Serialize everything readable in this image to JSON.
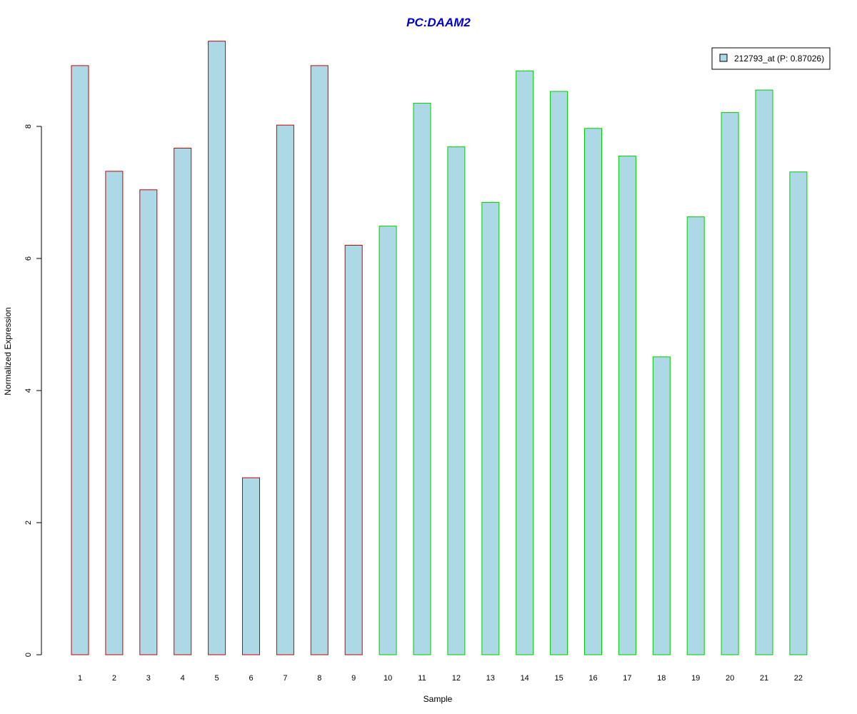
{
  "chart_data": {
    "type": "bar",
    "title": "PC:DAAM2",
    "xlabel": "Sample",
    "ylabel": "Normalized Expression",
    "categories": [
      "1",
      "2",
      "3",
      "4",
      "5",
      "6",
      "7",
      "8",
      "9",
      "10",
      "11",
      "12",
      "13",
      "14",
      "15",
      "16",
      "17",
      "18",
      "19",
      "20",
      "21",
      "22"
    ],
    "series": [
      {
        "name": "212793_at (P: 0.87026)",
        "values": [
          8.92,
          7.32,
          7.04,
          7.67,
          9.29,
          2.68,
          8.02,
          8.92,
          6.2,
          6.49,
          8.35,
          7.69,
          6.85,
          8.84,
          8.53,
          7.97,
          7.55,
          4.51,
          6.63,
          8.21,
          8.55,
          7.31
        ]
      }
    ],
    "group_border_colors": [
      "#cc0000",
      "#cc0000",
      "#cc0000",
      "#cc0000",
      "#cc0000",
      "#cc0000",
      "#cc0000",
      "#cc0000",
      "#cc0000",
      "#00cc00",
      "#00cc00",
      "#00cc00",
      "#00cc00",
      "#00cc00",
      "#00cc00",
      "#00cc00",
      "#00cc00",
      "#00cc00",
      "#00cc00",
      "#00cc00",
      "#00cc00",
      "#00cc00"
    ],
    "bar_fill": "#add8e6",
    "yticks": [
      0,
      2,
      4,
      6,
      8
    ],
    "ylim": [
      0,
      9.29
    ],
    "grid": false,
    "legend_position": "top-right"
  }
}
